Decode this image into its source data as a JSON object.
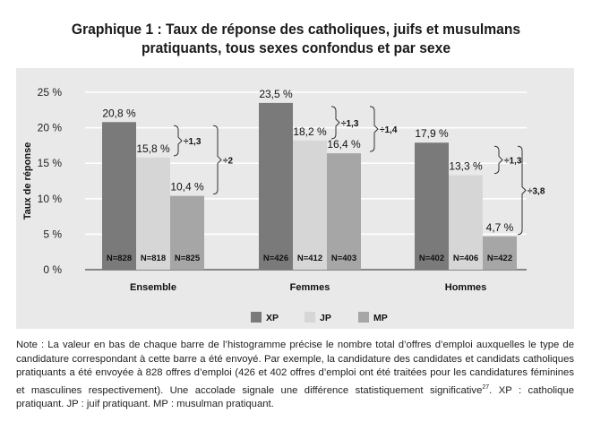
{
  "title": {
    "line1": "Graphique 1 : Taux de réponse des catholiques, juifs et musulmans",
    "line2": "pratiquants, tous sexes confondus et par sexe"
  },
  "note": {
    "text": "Note : La valeur en bas de chaque barre de l’histogramme précise le nombre total d’offres d’emploi auxquelles le type de candidature correspondant à cette barre a été envoyé. Par exemple, la candidature des candidates et candidats catholiques pratiquants a été envoyée à 828 offres d’emploi (426 et 402 offres d’emploi ont été traitées pour les candidatures féminines et masculines respectivement). Une accolade signale une différence statistiquement significative",
    "footnote": "27",
    "text_end": ". XP : catholique pratiquant. JP : juif pratiquant. MP : musulman pratiquant."
  },
  "chart_data": {
    "type": "bar",
    "title": "",
    "ylabel": "Taux de réponse",
    "ylim": [
      0,
      25
    ],
    "yticks": [
      "0 %",
      "5 %",
      "10 %",
      "15 %",
      "20 %",
      "25 %"
    ],
    "grid": true,
    "legend_position": "bottom",
    "categories": [
      "Ensemble",
      "Femmes",
      "Hommes"
    ],
    "series": [
      {
        "name": "XP",
        "color": "#7a7a7a",
        "values": [
          20.8,
          23.5,
          17.9
        ],
        "labels": [
          "20,8 %",
          "23,5 %",
          "17,9 %"
        ],
        "n": [
          "N=828",
          "N=426",
          "N=402"
        ]
      },
      {
        "name": "JP",
        "color": "#d6d6d6",
        "values": [
          15.8,
          18.2,
          13.3
        ],
        "labels": [
          "15,8 %",
          "18,2 %",
          "13,3 %"
        ],
        "n": [
          "N=818",
          "N=412",
          "N=406"
        ]
      },
      {
        "name": "MP",
        "color": "#a6a6a6",
        "values": [
          10.4,
          16.4,
          4.7
        ],
        "labels": [
          "10,4 %",
          "16,4 %",
          "4,7 %"
        ],
        "n": [
          "N=825",
          "N=403",
          "N=422"
        ]
      }
    ],
    "brackets": [
      {
        "category": 0,
        "from": 0,
        "to": 1,
        "label": "÷1,3"
      },
      {
        "category": 0,
        "from": 0,
        "to": 2,
        "label": "÷2"
      },
      {
        "category": 1,
        "from": 0,
        "to": 1,
        "label": "÷1,3"
      },
      {
        "category": 1,
        "from": 0,
        "to": 2,
        "label": "÷1,4"
      },
      {
        "category": 2,
        "from": 0,
        "to": 1,
        "label": "÷1,3"
      },
      {
        "category": 2,
        "from": 0,
        "to": 2,
        "label": "÷3,8"
      }
    ]
  }
}
